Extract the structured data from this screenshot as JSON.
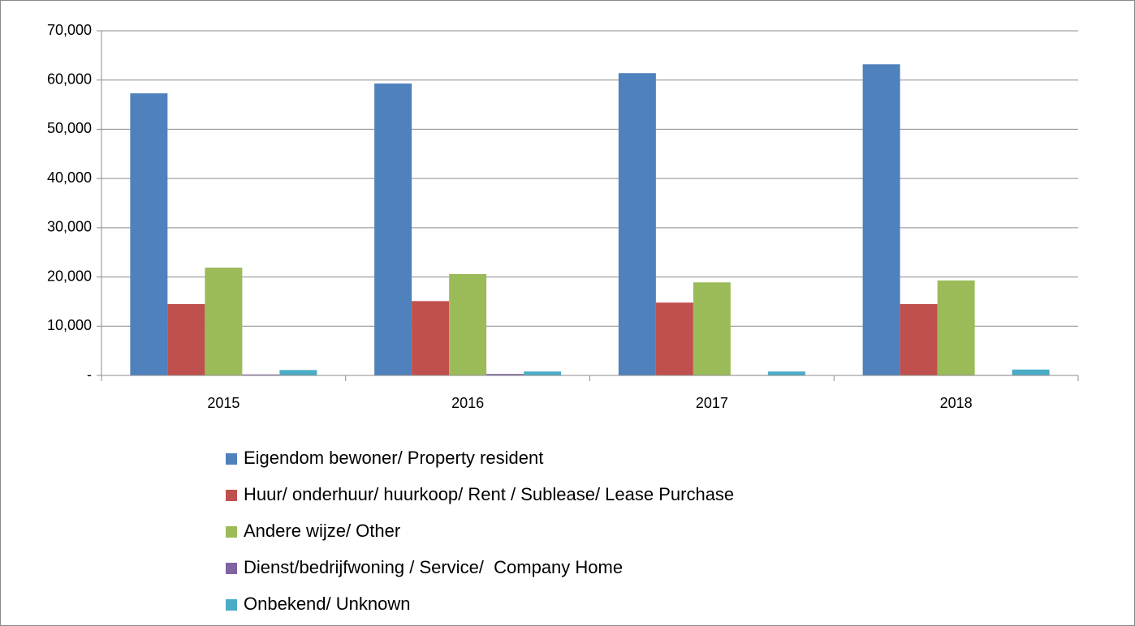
{
  "chart_data": {
    "type": "bar",
    "categories": [
      "2015",
      "2016",
      "2017",
      "2018"
    ],
    "series": [
      {
        "name": "Eigendom bewoner/ Property resident",
        "color": "#4f81bd",
        "values": [
          57300,
          59300,
          61400,
          63200
        ]
      },
      {
        "name": "Huur/ onderhuur/ huurkoop/ Rent / Sublease/ Lease Purchase",
        "color": "#c0504d",
        "values": [
          14500,
          15100,
          14800,
          14500
        ]
      },
      {
        "name": "Andere wijze/ Other",
        "color": "#9bbb59",
        "values": [
          21900,
          20600,
          18900,
          19300
        ]
      },
      {
        "name": "Dienst/bedrijfwoning / Service/  Company Home",
        "color": "#8064a2",
        "values": [
          200,
          300,
          100,
          100
        ]
      },
      {
        "name": "Onbekend/ Unknown",
        "color": "#4bacc6",
        "values": [
          1100,
          800,
          800,
          1200
        ]
      }
    ],
    "ylim": [
      0,
      70000
    ],
    "yticks": [
      {
        "value": 0,
        "label": "-"
      },
      {
        "value": 10000,
        "label": "10,000"
      },
      {
        "value": 20000,
        "label": "20,000"
      },
      {
        "value": 30000,
        "label": "30,000"
      },
      {
        "value": 40000,
        "label": "40,000"
      },
      {
        "value": 50000,
        "label": "50,000"
      },
      {
        "value": 60000,
        "label": "60,000"
      },
      {
        "value": 70000,
        "label": "70,000"
      }
    ],
    "grid": true,
    "legend": "bottom"
  }
}
